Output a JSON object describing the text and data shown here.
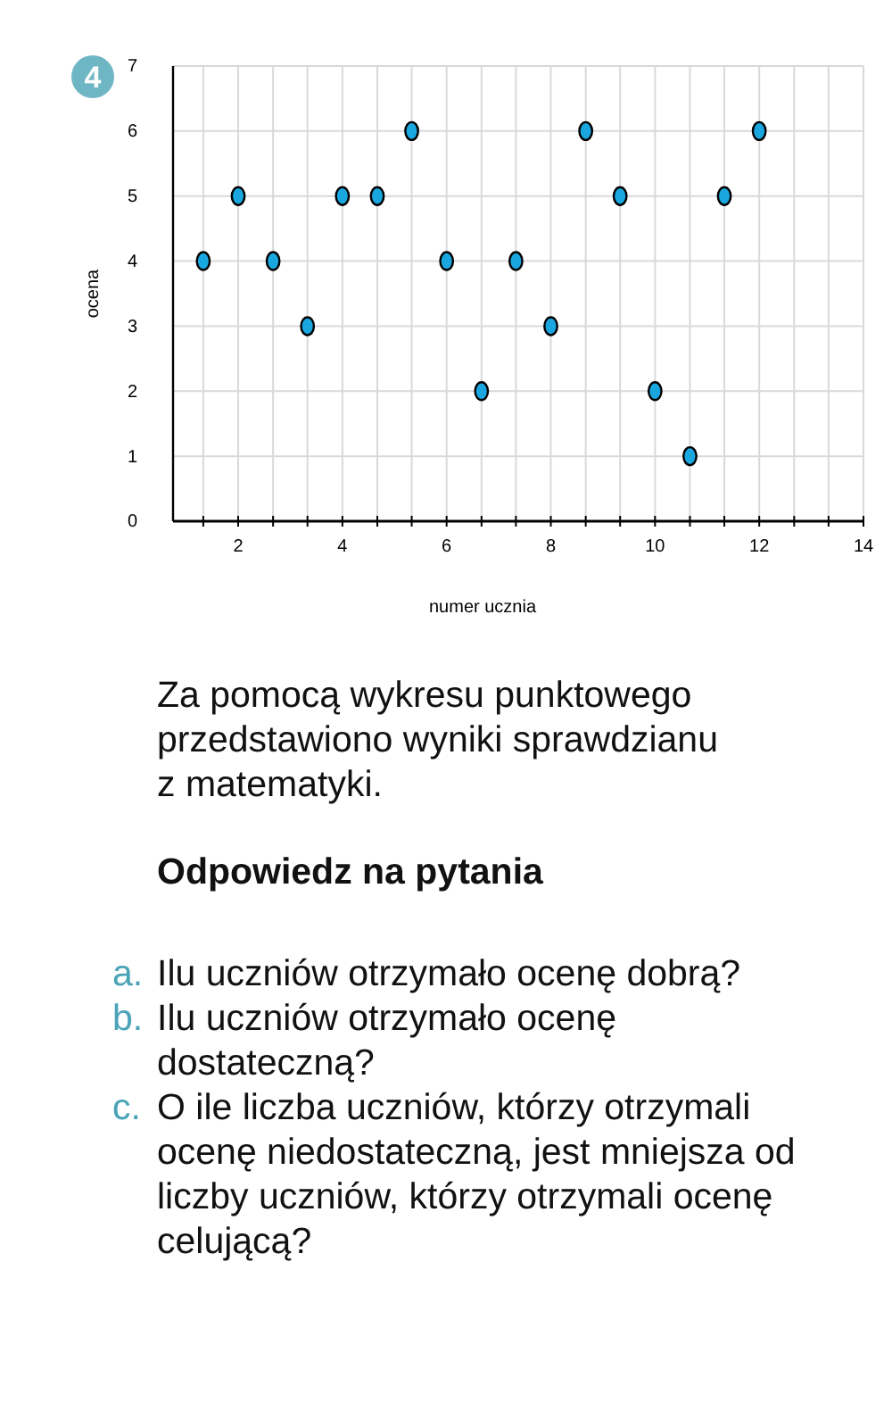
{
  "chart_data": {
    "type": "scatter",
    "xlabel": "numer ucznia",
    "ylabel": "ocena",
    "x": [
      1.33,
      2,
      2.67,
      3.33,
      4,
      4.67,
      5.33,
      6,
      6.67,
      7.33,
      8,
      8.67,
      9.33,
      10,
      10.67,
      11.33,
      12
    ],
    "series": [
      {
        "color": "#1aa7e0",
        "values": [
          4,
          5,
          4,
          3,
          5,
          5,
          6,
          4,
          2,
          4,
          3,
          6,
          5,
          2,
          1,
          5,
          6
        ]
      }
    ],
    "xlim": [
      0.75,
      14
    ],
    "xticks": [
      {
        "value": 1.33,
        "label": null
      },
      2,
      {
        "value": 2.67,
        "label": null
      },
      {
        "value": 3.33,
        "label": null
      },
      4,
      {
        "value": 4.67,
        "label": null
      },
      {
        "value": 5.33,
        "label": null
      },
      6,
      {
        "value": 6.67,
        "label": null
      },
      {
        "value": 7.33,
        "label": null
      },
      8,
      {
        "value": 8.67,
        "label": null
      },
      {
        "value": 9.33,
        "label": null
      },
      10,
      {
        "value": 10.67,
        "label": null
      },
      {
        "value": 11.33,
        "label": null
      },
      12,
      {
        "value": 12.67,
        "label": null
      },
      {
        "value": 13.33,
        "label": null
      },
      14
    ],
    "ylim": [
      0,
      7
    ],
    "yticks": [
      0,
      1,
      2,
      3,
      4,
      5,
      6,
      7
    ],
    "grid": true,
    "marker": "circle",
    "annotations": [
      "4",
      "Za pomocą wykresu punktowego przedstawiono wyniki sprawdzianu z matematyki.",
      "Odpowiedz na pytania",
      "a. Ilu uczniów otrzymało ocenę dobrą?",
      "b. Ilu uczniów otrzymało ocenę dostateczną?",
      "c. O ile liczba uczniów, którzy otrzymali ocenę niedostateczną, jest mniejsza od liczby uczniów, którzy otrzymali ocenę celującą?"
    ]
  }
}
